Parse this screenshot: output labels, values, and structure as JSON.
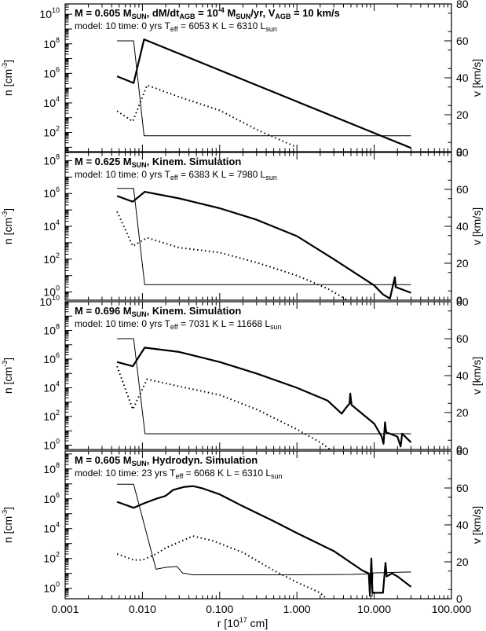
{
  "chart_data": {
    "type": "line",
    "x_axis": {
      "label": "r [10",
      "label_sup": "17",
      "label_tail": " cm]",
      "scale": "log",
      "range": [
        0.001,
        100
      ],
      "ticks": [
        {
          "value": 0.001,
          "label": "0.001"
        },
        {
          "value": 0.01,
          "label": "0.010"
        },
        {
          "value": 0.1,
          "label": "0.100"
        },
        {
          "value": 1,
          "label": "1.000"
        },
        {
          "value": 10,
          "label": "10.000"
        },
        {
          "value": 100,
          "label": "100.000"
        }
      ]
    },
    "y_left": {
      "label": "n [cm",
      "label_sup": "-3",
      "label_tail": "]",
      "scale": "log"
    },
    "y_right": {
      "label": "v [km/s]",
      "range": [
        0,
        80
      ],
      "ticks": [
        "0",
        "20",
        "40",
        "60",
        "80"
      ]
    },
    "panels": [
      {
        "line1": [
          {
            "t": "M = 0.605 M"
          },
          {
            "t": "SUN",
            "sub": true
          },
          {
            "t": ",  dM/dt"
          },
          {
            "t": "AGB",
            "sub": true
          },
          {
            "t": " = 10"
          },
          {
            "t": "-4",
            "sup": true
          },
          {
            "t": " M"
          },
          {
            "t": "SUN",
            "sub": true
          },
          {
            "t": "/yr,  V"
          },
          {
            "t": "AGB",
            "sub": true
          },
          {
            "t": " = 10 km/s"
          }
        ],
        "line2": [
          {
            "t": "model: 10     time: 0 yrs     T"
          },
          {
            "t": "eff",
            "sub": true
          },
          {
            "t": " = 6053 K     L = 6310 L"
          },
          {
            "t": "sun",
            "sub": true
          }
        ],
        "ylog_range": [
          0.7,
          10.7
        ],
        "yticks": [
          2,
          4,
          6,
          8,
          10
        ],
        "series": [
          {
            "name": "density",
            "style": "thick",
            "axis": "left",
            "points": [
              [
                0.0047,
                5.8
              ],
              [
                0.0077,
                5.35
              ],
              [
                0.0105,
                8.3
              ],
              [
                30,
                0.95
              ]
            ]
          },
          {
            "name": "density (dotted)",
            "style": "dotted",
            "axis": "left",
            "points": [
              [
                0.0047,
                3.45
              ],
              [
                0.0075,
                2.75
              ],
              [
                0.0115,
                5.2
              ],
              [
                0.03,
                4.4
              ],
              [
                0.1,
                3.5
              ],
              [
                0.3,
                2.2
              ],
              [
                0.6,
                1.5
              ],
              [
                1,
                1.0
              ]
            ]
          },
          {
            "name": "velocity",
            "style": "thin",
            "axis": "right",
            "points": [
              [
                0.0047,
                60
              ],
              [
                0.0077,
                60
              ],
              [
                0.0105,
                8.6
              ],
              [
                30,
                8.6
              ]
            ]
          }
        ]
      },
      {
        "line1": [
          {
            "t": "M = 0.625 M"
          },
          {
            "t": "SUN",
            "sub": true
          },
          {
            "t": ",  Kinem. Simulation"
          }
        ],
        "line2": [
          {
            "t": "model: 10     time: 0 yrs     T"
          },
          {
            "t": "eff",
            "sub": true
          },
          {
            "t": " = 6383 K     L = 7980 L"
          },
          {
            "t": "sun",
            "sub": true
          }
        ],
        "ylog_range": [
          -0.5,
          8.5
        ],
        "yticks": [
          0,
          2,
          4,
          6,
          8
        ],
        "series": [
          {
            "name": "density",
            "style": "thick",
            "axis": "left",
            "points": [
              [
                0.0047,
                5.85
              ],
              [
                0.0075,
                5.5
              ],
              [
                0.0107,
                6.1
              ],
              [
                0.03,
                5.7
              ],
              [
                0.1,
                5.1
              ],
              [
                0.3,
                4.4
              ],
              [
                1,
                3.4
              ],
              [
                3,
                2.0
              ],
              [
                10,
                0.4
              ],
              [
                13,
                -0.15
              ],
              [
                16,
                -0.4
              ],
              [
                18.5,
                0.9
              ],
              [
                19,
                0.3
              ],
              [
                30,
                -0.05
              ]
            ]
          },
          {
            "name": "density (dotted)",
            "style": "dotted",
            "axis": "left",
            "points": [
              [
                0.0047,
                4.9
              ],
              [
                0.0075,
                2.8
              ],
              [
                0.0115,
                3.3
              ],
              [
                0.03,
                2.7
              ],
              [
                0.1,
                2.4
              ],
              [
                0.3,
                1.8
              ],
              [
                1,
                1.0
              ],
              [
                2.5,
                0.2
              ],
              [
                4.5,
                -0.5
              ]
            ]
          },
          {
            "name": "velocity",
            "style": "thin",
            "axis": "right",
            "points": [
              [
                0.0047,
                60.5
              ],
              [
                0.0077,
                60.5
              ],
              [
                0.0107,
                8.4
              ],
              [
                30,
                8.4
              ]
            ]
          }
        ]
      },
      {
        "line1": [
          {
            "t": "M = 0.696 M"
          },
          {
            "t": "SUN",
            "sub": true
          },
          {
            "t": ",  Kinem. Simulation"
          }
        ],
        "line2": [
          {
            "t": "model: 10     time: 0 yrs     T"
          },
          {
            "t": "eff",
            "sub": true
          },
          {
            "t": " = 7031 K     L = 11668 L"
          },
          {
            "t": "sun",
            "sub": true
          }
        ],
        "ylog_range": [
          -0.3,
          10
        ],
        "yticks": [
          0,
          2,
          4,
          6,
          8,
          10
        ],
        "series": [
          {
            "name": "density",
            "style": "thick",
            "axis": "left",
            "points": [
              [
                0.0047,
                5.8
              ],
              [
                0.0075,
                5.5
              ],
              [
                0.0107,
                6.8
              ],
              [
                0.03,
                6.5
              ],
              [
                0.1,
                5.8
              ],
              [
                0.3,
                5.0
              ],
              [
                1,
                4.0
              ],
              [
                2.5,
                3.1
              ],
              [
                3.8,
                2.2
              ],
              [
                4.3,
                2.6
              ],
              [
                4.8,
                2.9
              ],
              [
                4.9,
                3.6
              ],
              [
                5.1,
                2.8
              ],
              [
                10,
                1.5
              ],
              [
                12.5,
                0.6
              ],
              [
                13.2,
                0.1
              ],
              [
                13.8,
                1.6
              ],
              [
                14.3,
                0.9
              ],
              [
                20,
                0.6
              ],
              [
                22,
                -0.1
              ],
              [
                23,
                0.8
              ],
              [
                30,
                0.2
              ]
            ]
          },
          {
            "name": "density (dotted)",
            "style": "dotted",
            "axis": "left",
            "points": [
              [
                0.0047,
                5.5
              ],
              [
                0.0075,
                2.5
              ],
              [
                0.0115,
                4.6
              ],
              [
                0.03,
                4.1
              ],
              [
                0.1,
                3.5
              ],
              [
                0.3,
                2.5
              ],
              [
                1,
                1.1
              ],
              [
                2,
                0.2
              ],
              [
                2.7,
                -0.3
              ]
            ]
          },
          {
            "name": "velocity",
            "style": "thin",
            "axis": "right",
            "points": [
              [
                0.0047,
                60
              ],
              [
                0.0077,
                60
              ],
              [
                0.0108,
                8.5
              ],
              [
                30,
                8.5
              ]
            ]
          }
        ]
      },
      {
        "line1": [
          {
            "t": "M = 0.605 M"
          },
          {
            "t": "SUN",
            "sub": true
          },
          {
            "t": ",  Hydrodyn. Simulation"
          }
        ],
        "line2": [
          {
            "t": "model: 10     time: 23 yrs     T"
          },
          {
            "t": "eff",
            "sub": true
          },
          {
            "t": " = 6068 K     L = 6310 L"
          },
          {
            "t": "sun",
            "sub": true
          }
        ],
        "ylog_range": [
          -0.7,
          9.2
        ],
        "yticks": [
          0,
          2,
          4,
          6,
          8
        ],
        "series": [
          {
            "name": "density",
            "style": "thick",
            "axis": "left",
            "points": [
              [
                0.0047,
                5.8
              ],
              [
                0.0077,
                5.4
              ],
              [
                0.0105,
                5.7
              ],
              [
                0.015,
                6.0
              ],
              [
                0.02,
                6.2
              ],
              [
                0.025,
                6.6
              ],
              [
                0.035,
                6.8
              ],
              [
                0.045,
                6.85
              ],
              [
                0.06,
                6.7
              ],
              [
                0.1,
                6.3
              ],
              [
                0.2,
                5.5
              ],
              [
                0.5,
                4.5
              ],
              [
                1,
                3.7
              ],
              [
                3,
                2.5
              ],
              [
                7,
                1.2
              ],
              [
                8.5,
                1.0
              ],
              [
                8.8,
                -0.4
              ],
              [
                9.2,
                2.0
              ],
              [
                9.5,
                -0.3
              ],
              [
                13,
                -0.3
              ],
              [
                14,
                1.7
              ],
              [
                14.5,
                0.8
              ],
              [
                17,
                1.0
              ],
              [
                20,
                0.8
              ],
              [
                30,
                0.1
              ]
            ]
          },
          {
            "name": "density (dotted)",
            "style": "dotted",
            "axis": "left",
            "points": [
              [
                0.0047,
                2.3
              ],
              [
                0.0077,
                1.9
              ],
              [
                0.01,
                1.9
              ],
              [
                0.015,
                2.3
              ],
              [
                0.02,
                2.7
              ],
              [
                0.03,
                3.1
              ],
              [
                0.045,
                3.5
              ],
              [
                0.08,
                3.2
              ],
              [
                0.2,
                2.4
              ],
              [
                0.5,
                1.2
              ],
              [
                1,
                0.4
              ],
              [
                2,
                -0.3
              ],
              [
                2.3,
                -0.6
              ]
            ]
          },
          {
            "name": "velocity",
            "style": "thin",
            "axis": "right",
            "points": [
              [
                0.0047,
                62
              ],
              [
                0.0077,
                62
              ],
              [
                0.015,
                16
              ],
              [
                0.02,
                17
              ],
              [
                0.028,
                17.5
              ],
              [
                0.033,
                14
              ],
              [
                0.045,
                13
              ],
              [
                0.1,
                13
              ],
              [
                1,
                13
              ],
              [
                5,
                13.2
              ],
              [
                8.5,
                13.5
              ],
              [
                8.7,
                1.5
              ],
              [
                9.4,
                1.5
              ],
              [
                9.6,
                14
              ],
              [
                30,
                14.5
              ]
            ]
          }
        ]
      }
    ]
  }
}
